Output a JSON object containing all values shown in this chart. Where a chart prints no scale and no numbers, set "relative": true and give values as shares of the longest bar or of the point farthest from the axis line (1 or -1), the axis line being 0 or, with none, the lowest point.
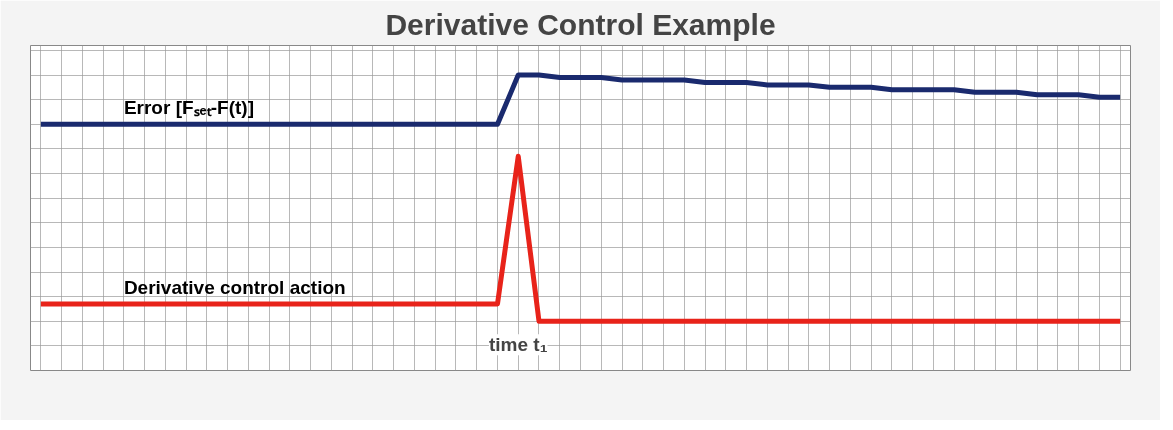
{
  "chart_data": {
    "type": "line",
    "title": "Derivative Control Example",
    "relative": true,
    "grid": true,
    "categories": [
      null,
      null,
      null,
      null,
      null,
      null,
      null,
      null,
      null,
      null,
      null,
      null,
      null,
      null,
      null,
      null,
      null,
      null,
      null,
      null,
      null,
      null,
      null,
      null,
      null,
      null,
      null,
      null,
      null,
      null,
      null,
      null,
      null,
      null,
      null,
      null,
      null,
      null,
      null,
      null,
      null,
      null,
      null,
      null,
      null,
      null,
      null,
      null,
      null,
      null,
      null,
      null,
      null
    ],
    "series": [
      {
        "name": "Error [Fₛₑₜ-F(t)]",
        "color": "#1a2a6e",
        "values": [
          0.8,
          0.8,
          0.8,
          0.8,
          0.8,
          0.8,
          0.8,
          0.8,
          0.8,
          0.8,
          0.8,
          0.8,
          0.8,
          0.8,
          0.8,
          0.8,
          0.8,
          0.8,
          0.8,
          0.8,
          0.8,
          0.8,
          0.8,
          1.0,
          1.0,
          0.99,
          0.99,
          0.99,
          0.98,
          0.98,
          0.98,
          0.98,
          0.97,
          0.97,
          0.97,
          0.96,
          0.96,
          0.96,
          0.95,
          0.95,
          0.95,
          0.94,
          0.94,
          0.94,
          0.94,
          0.93,
          0.93,
          0.93,
          0.92,
          0.92,
          0.92,
          0.91,
          0.91
        ]
      },
      {
        "name": "Derivative control action",
        "color": "#e8231a",
        "values": [
          0.07,
          0.07,
          0.07,
          0.07,
          0.07,
          0.07,
          0.07,
          0.07,
          0.07,
          0.07,
          0.07,
          0.07,
          0.07,
          0.07,
          0.07,
          0.07,
          0.07,
          0.07,
          0.07,
          0.07,
          0.07,
          0.07,
          0.07,
          0.67,
          0,
          0,
          0,
          0,
          0,
          0,
          0,
          0,
          0,
          0,
          0,
          0,
          0,
          0,
          0,
          0,
          0,
          0,
          0,
          0,
          0,
          0,
          0,
          0,
          0,
          0,
          0,
          0,
          0
        ]
      }
    ],
    "annotations": [
      "time t₁"
    ]
  }
}
